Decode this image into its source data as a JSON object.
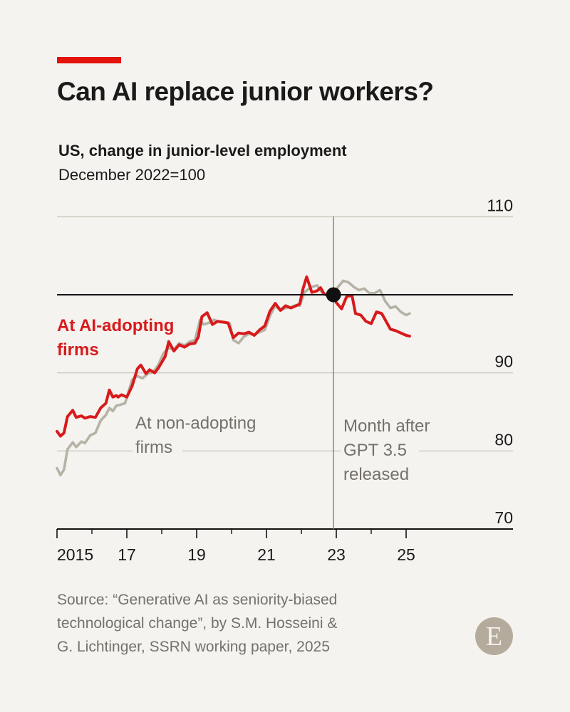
{
  "header": {
    "title": "Can AI replace junior workers?",
    "subtitle": "US, change in junior-level employment",
    "subtitle2": "December 2022=100"
  },
  "source": {
    "line1": "Source: “Generative AI as seniority-biased",
    "line2": "technological change”, by S.M. Hosseini &",
    "line3": "G. Lichtinger, SSRN working paper, 2025"
  },
  "logo": {
    "letter": "E"
  },
  "colors": {
    "ai": "#d71a1c",
    "non": "#b6b2a6",
    "grid": "#cfcbc3",
    "axis": "#111111",
    "vline": "#8a8781",
    "label_gray": "#75716a",
    "bg": "#f5f3ef"
  },
  "chart_data": {
    "type": "line",
    "title": "Can AI replace junior workers?",
    "ylim": [
      70,
      110
    ],
    "yticks": [
      "110",
      "100",
      "90",
      "80",
      "70"
    ],
    "ytick_values": [
      110,
      100,
      90,
      80,
      70
    ],
    "xlim": [
      2015.0,
      2025.1
    ],
    "xtick_labels": [
      "2015",
      "17",
      "19",
      "21",
      "23",
      "25"
    ],
    "xtick_values": [
      2015,
      2017,
      2019,
      2021,
      2023,
      2025
    ],
    "minor_xticks": [
      2016,
      2018,
      2020,
      2022,
      2024
    ],
    "baseline": 100,
    "reference_date": 2022.92,
    "annotation": {
      "x": 2023.0,
      "lines": [
        "Month after",
        "GPT 3.5",
        "released"
      ]
    },
    "series": [
      {
        "name": "At AI-adopting firms",
        "label_lines": [
          "At AI-adopting",
          "firms"
        ],
        "x": [
          2015.0,
          2015.1,
          2015.2,
          2015.3,
          2015.45,
          2015.55,
          2015.7,
          2015.8,
          2015.95,
          2016.1,
          2016.25,
          2016.4,
          2016.5,
          2016.6,
          2016.7,
          2016.75,
          2016.85,
          2017.0,
          2017.15,
          2017.3,
          2017.4,
          2017.55,
          2017.65,
          2017.8,
          2017.9,
          2018.1,
          2018.2,
          2018.35,
          2018.5,
          2018.65,
          2018.8,
          2018.95,
          2019.05,
          2019.15,
          2019.3,
          2019.45,
          2019.6,
          2019.75,
          2019.9,
          2020.05,
          2020.2,
          2020.35,
          2020.5,
          2020.65,
          2020.8,
          2020.95,
          2021.1,
          2021.25,
          2021.4,
          2021.55,
          2021.7,
          2021.85,
          2021.95,
          2022.05,
          2022.15,
          2022.3,
          2022.45,
          2022.55,
          2022.65,
          2022.75,
          2022.92,
          2023.0,
          2023.15,
          2023.3,
          2023.45,
          2023.55,
          2023.7,
          2023.85,
          2024.0,
          2024.15,
          2024.3,
          2024.45,
          2024.55,
          2024.7,
          2024.85,
          2025.0,
          2025.1
        ],
        "values": [
          82.5,
          81.9,
          82.3,
          84.4,
          85.2,
          84.3,
          84.5,
          84.2,
          84.4,
          84.3,
          85.5,
          86.1,
          87.8,
          86.9,
          87.1,
          86.9,
          87.2,
          86.9,
          88.3,
          90.5,
          91.0,
          89.9,
          90.4,
          90.0,
          90.6,
          92.1,
          94.0,
          92.8,
          93.6,
          93.3,
          93.7,
          93.8,
          94.6,
          97.2,
          97.7,
          96.2,
          96.6,
          96.5,
          96.4,
          94.5,
          95.1,
          95.0,
          95.2,
          94.8,
          95.5,
          96.0,
          97.9,
          98.9,
          98.0,
          98.6,
          98.3,
          98.6,
          98.8,
          100.8,
          102.3,
          100.3,
          100.5,
          100.9,
          100.1,
          99.9,
          100.0,
          99.0,
          98.2,
          99.8,
          99.9,
          97.6,
          97.4,
          96.6,
          96.3,
          97.8,
          97.6,
          96.4,
          95.6,
          95.4,
          95.1,
          94.8,
          94.7
        ]
      },
      {
        "name": "At non-adopting firms",
        "label_lines": [
          "At non-adopting",
          "firms"
        ],
        "x": [
          2015.0,
          2015.1,
          2015.2,
          2015.3,
          2015.45,
          2015.55,
          2015.7,
          2015.8,
          2015.95,
          2016.1,
          2016.25,
          2016.4,
          2016.5,
          2016.6,
          2016.7,
          2016.8,
          2016.95,
          2017.05,
          2017.15,
          2017.3,
          2017.45,
          2017.6,
          2017.75,
          2017.9,
          2018.05,
          2018.2,
          2018.35,
          2018.5,
          2018.65,
          2018.8,
          2018.95,
          2019.1,
          2019.2,
          2019.35,
          2019.5,
          2019.65,
          2019.8,
          2019.95,
          2020.05,
          2020.2,
          2020.35,
          2020.5,
          2020.65,
          2020.8,
          2020.95,
          2021.1,
          2021.25,
          2021.4,
          2021.55,
          2021.7,
          2021.85,
          2021.95,
          2022.1,
          2022.3,
          2022.45,
          2022.6,
          2022.75,
          2022.92,
          2023.05,
          2023.2,
          2023.35,
          2023.5,
          2023.65,
          2023.8,
          2023.95,
          2024.1,
          2024.25,
          2024.4,
          2024.55,
          2024.7,
          2024.85,
          2025.0,
          2025.1
        ],
        "values": [
          77.8,
          76.9,
          77.6,
          80.2,
          81.1,
          80.5,
          81.2,
          81.0,
          82.0,
          82.3,
          83.9,
          84.6,
          85.5,
          85.1,
          85.8,
          85.9,
          86.1,
          87.6,
          89.1,
          89.6,
          89.3,
          89.9,
          90.1,
          91.0,
          92.5,
          93.2,
          93.0,
          93.8,
          93.5,
          94.0,
          94.2,
          96.8,
          96.2,
          96.4,
          96.8,
          96.5,
          96.5,
          96.3,
          94.2,
          93.8,
          94.6,
          95.0,
          94.9,
          95.2,
          95.5,
          97.3,
          98.6,
          98.0,
          98.3,
          98.4,
          98.7,
          98.6,
          100.4,
          101.0,
          101.2,
          100.2,
          100.0,
          100.0,
          101.0,
          101.8,
          101.6,
          101.0,
          100.6,
          100.8,
          100.2,
          100.2,
          100.6,
          99.2,
          98.3,
          98.5,
          97.8,
          97.4,
          97.6
        ]
      }
    ]
  }
}
